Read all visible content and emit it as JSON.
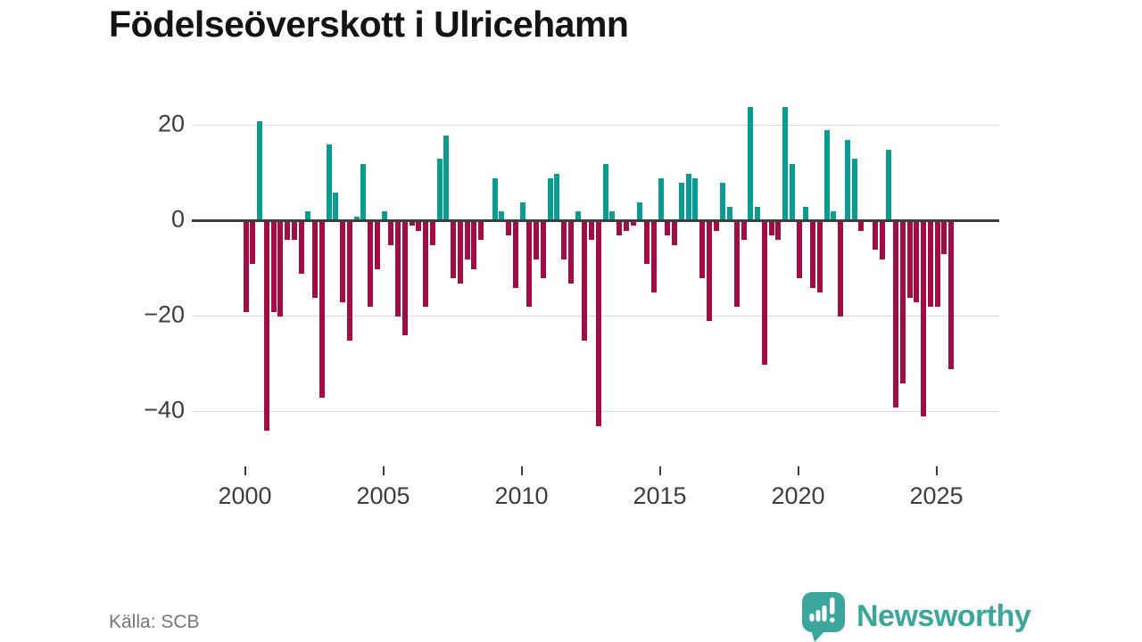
{
  "title": "Födelseöverskott i Ulricehamn",
  "source": "Källa: SCB",
  "brand": {
    "name": "Newsworthy",
    "color": "#3ba79c"
  },
  "colors": {
    "positive": "#089c93",
    "negative": "#a30d45",
    "axis": "#3d3d3d",
    "grid": "#dcdcdc"
  },
  "chart_data": {
    "type": "bar",
    "title": "Födelseöverskott i Ulricehamn",
    "x_unit": "quarter",
    "start_year": 2000,
    "grid": true,
    "legend": false,
    "ylim": [
      -47,
      26
    ],
    "yticks": [
      {
        "value": 20,
        "label": "20"
      },
      {
        "value": 0,
        "label": "0"
      },
      {
        "value": -20,
        "label": "−20"
      },
      {
        "value": -40,
        "label": "−40"
      }
    ],
    "xticks": [
      {
        "year": 2000,
        "label": "2000"
      },
      {
        "year": 2005,
        "label": "2005"
      },
      {
        "year": 2010,
        "label": "2010"
      },
      {
        "year": 2015,
        "label": "2015"
      },
      {
        "year": 2020,
        "label": "2020"
      },
      {
        "year": 2025,
        "label": "2025"
      }
    ],
    "values": [
      -19,
      -9,
      21,
      -44,
      -19,
      -20,
      -4,
      -4,
      -11,
      2,
      -16,
      -37,
      16,
      6,
      -17,
      -25,
      1,
      12,
      -18,
      -10,
      2,
      -5,
      -20,
      -24,
      -1,
      -2,
      -18,
      -5,
      13,
      18,
      -12,
      -13,
      -8,
      -10,
      -4,
      0,
      9,
      2,
      -3,
      -14,
      4,
      -18,
      -8,
      -12,
      9,
      10,
      -8,
      -13,
      2,
      -25,
      -4,
      -43,
      12,
      2,
      -3,
      -2,
      -1,
      4,
      -9,
      -15,
      9,
      -3,
      -5,
      8,
      10,
      9,
      -12,
      -21,
      -2,
      8,
      3,
      -18,
      -4,
      24,
      3,
      -30,
      -3,
      -4,
      24,
      12,
      -12,
      3,
      -14,
      -15,
      19,
      2,
      -20,
      17,
      13,
      -2,
      0,
      -6,
      -8,
      15,
      -39,
      -34,
      -16,
      -17,
      -41,
      -18,
      -18,
      -7,
      -31
    ]
  }
}
